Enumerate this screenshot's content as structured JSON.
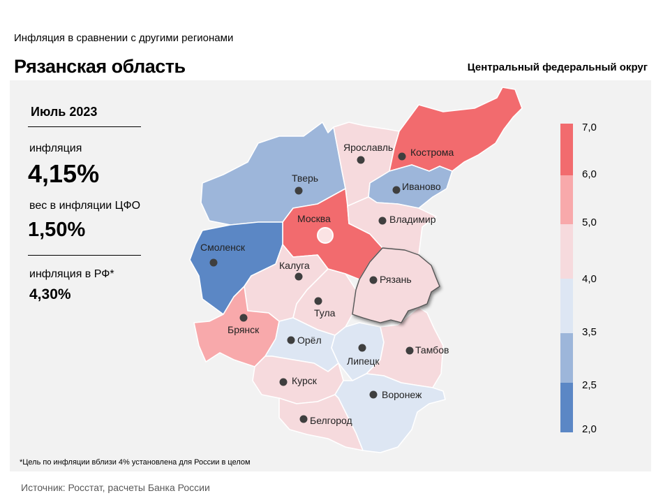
{
  "header": {
    "subtitle": "Инфляция  в сравнении  с другими  регионами",
    "region": "Рязанская область",
    "district": "Центральный федеральный округ"
  },
  "stats": {
    "period": "Июль 2023",
    "inflation_label": "инфляция",
    "inflation_value": "4,15%",
    "weight_label": "вес в инфляции  ЦФО",
    "weight_value": "1,50%",
    "rf_label": "инфляция  в РФ*",
    "rf_value": "4,30%"
  },
  "footnote": "*Цель по инфляции вблизи 4% установлена для России в целом",
  "source": "Источник: Росстат, расчеты Банка России",
  "legend": {
    "ticks": [
      "7,0",
      "6,0",
      "5,0",
      "4,0",
      "3,5",
      "2,5",
      "2,0"
    ],
    "bins": [
      {
        "range": "6,0–7,0",
        "color": "#f26b6e"
      },
      {
        "range": "5,0–6,0",
        "color": "#f8a9ab"
      },
      {
        "range": "4,0–5,0",
        "color": "#f6dadd"
      },
      {
        "range": "3,5–4,0",
        "color": "#dde6f3"
      },
      {
        "range": "2,5–3,5",
        "color": "#9db6da"
      },
      {
        "range": "2,0–2,5",
        "color": "#5b87c5"
      }
    ]
  },
  "regions": [
    {
      "name": "Ярославль",
      "bin": "4,0–5,0"
    },
    {
      "name": "Кострома",
      "bin": "6,0–7,0"
    },
    {
      "name": "Тверь",
      "bin": "2,5–3,5"
    },
    {
      "name": "Иваново",
      "bin": "2,5–3,5"
    },
    {
      "name": "Москва",
      "bin": "6,0–7,0"
    },
    {
      "name": "Владимир",
      "bin": "4,0–5,0"
    },
    {
      "name": "Смоленск",
      "bin": "2,0–2,5"
    },
    {
      "name": "Калуга",
      "bin": "4,0–5,0"
    },
    {
      "name": "Рязань",
      "bin": "4,0–5,0"
    },
    {
      "name": "Тула",
      "bin": "4,0–5,0"
    },
    {
      "name": "Брянск",
      "bin": "5,0–6,0"
    },
    {
      "name": "Орёл",
      "bin": "3,5–4,0"
    },
    {
      "name": "Липецк",
      "bin": "3,5–4,0"
    },
    {
      "name": "Тамбов",
      "bin": "4,0–5,0"
    },
    {
      "name": "Курск",
      "bin": "4,0–5,0"
    },
    {
      "name": "Воронеж",
      "bin": "3,5–4,0"
    },
    {
      "name": "Белгород",
      "bin": "4,0–5,0"
    }
  ]
}
